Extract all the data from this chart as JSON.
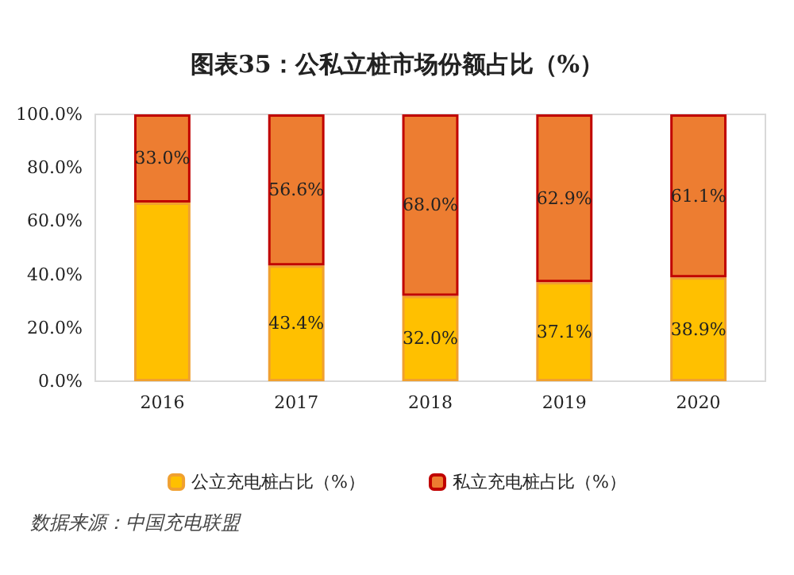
{
  "chart_data": {
    "type": "bar",
    "title": "图表35：公私立桩市场份额占比（%）",
    "categories": [
      "2016",
      "2017",
      "2018",
      "2019",
      "2020"
    ],
    "stacked": true,
    "series": [
      {
        "name": "公立充电桩占比（%）",
        "color": "#ffc000",
        "values": [
          67.0,
          43.4,
          32.0,
          37.1,
          38.9
        ],
        "value_labels": [
          null,
          "43.4%",
          "32.0%",
          "37.1%",
          "38.9%"
        ]
      },
      {
        "name": "私立充电桩占比（%）",
        "color": "#ed7d31",
        "values": [
          33.0,
          56.6,
          68.0,
          62.9,
          61.1
        ],
        "value_labels": [
          "33.0%",
          "56.6%",
          "68.0%",
          "62.9%",
          "61.1%"
        ]
      }
    ],
    "ylim": [
      0,
      100
    ],
    "yticks": [
      {
        "value": 0,
        "label": "0.0%"
      },
      {
        "value": 20,
        "label": "20.0%"
      },
      {
        "value": 40,
        "label": "40.0%"
      },
      {
        "value": 60,
        "label": "60.0%"
      },
      {
        "value": 80,
        "label": "80.0%"
      },
      {
        "value": 100,
        "label": "100.0%"
      }
    ],
    "grid": false,
    "legend": "bottom",
    "annotations": [
      "数据来源：中国充电联盟"
    ]
  }
}
